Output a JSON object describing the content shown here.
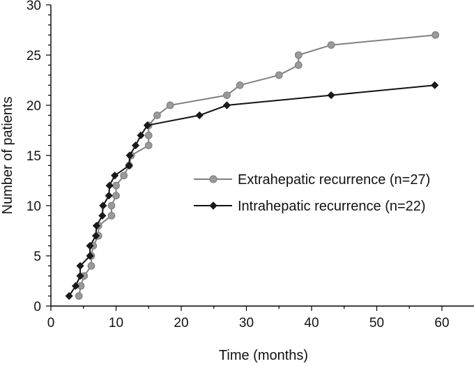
{
  "chart_data": {
    "type": "line",
    "title": "",
    "xlabel": "Time (months)",
    "ylabel": "Number of patients",
    "xlim": [
      0,
      65
    ],
    "ylim": [
      0,
      30
    ],
    "xticks": [
      0,
      10,
      20,
      30,
      40,
      50,
      60
    ],
    "yticks": [
      0,
      5,
      10,
      15,
      20,
      25,
      30
    ],
    "legend_position": "right-center",
    "series": [
      {
        "name": "Extrahepatic recurrence (n=27)",
        "color": "#808080",
        "marker": "circle",
        "points": [
          [
            4.3,
            1
          ],
          [
            4.6,
            2
          ],
          [
            5.1,
            3
          ],
          [
            6.2,
            4
          ],
          [
            6.2,
            5
          ],
          [
            6.5,
            6
          ],
          [
            7.3,
            7
          ],
          [
            7.3,
            8
          ],
          [
            9.3,
            9
          ],
          [
            9.3,
            10
          ],
          [
            10.0,
            11
          ],
          [
            10.0,
            12
          ],
          [
            11.2,
            13
          ],
          [
            12.0,
            14
          ],
          [
            12.3,
            15
          ],
          [
            15.0,
            16
          ],
          [
            15.0,
            17
          ],
          [
            15.0,
            18
          ],
          [
            16.3,
            19
          ],
          [
            18.3,
            20
          ],
          [
            27.0,
            21
          ],
          [
            29.0,
            22
          ],
          [
            35.0,
            23
          ],
          [
            38.0,
            24
          ],
          [
            38.0,
            25
          ],
          [
            43.0,
            26
          ],
          [
            59.0,
            27
          ]
        ]
      },
      {
        "name": "Intrahepatic recurrence (n=22)",
        "color": "#111111",
        "marker": "diamond",
        "points": [
          [
            2.8,
            1
          ],
          [
            3.8,
            2
          ],
          [
            4.5,
            3
          ],
          [
            4.5,
            4
          ],
          [
            6.0,
            5
          ],
          [
            6.0,
            6
          ],
          [
            6.9,
            7
          ],
          [
            7.0,
            8
          ],
          [
            7.9,
            9
          ],
          [
            8.0,
            10
          ],
          [
            8.9,
            11
          ],
          [
            9.0,
            12
          ],
          [
            9.8,
            13
          ],
          [
            12.0,
            14
          ],
          [
            12.1,
            15
          ],
          [
            13.0,
            16
          ],
          [
            13.8,
            17
          ],
          [
            14.8,
            18
          ],
          [
            22.8,
            19
          ],
          [
            27.0,
            20
          ],
          [
            43.0,
            21
          ],
          [
            58.9,
            22
          ]
        ]
      }
    ]
  }
}
